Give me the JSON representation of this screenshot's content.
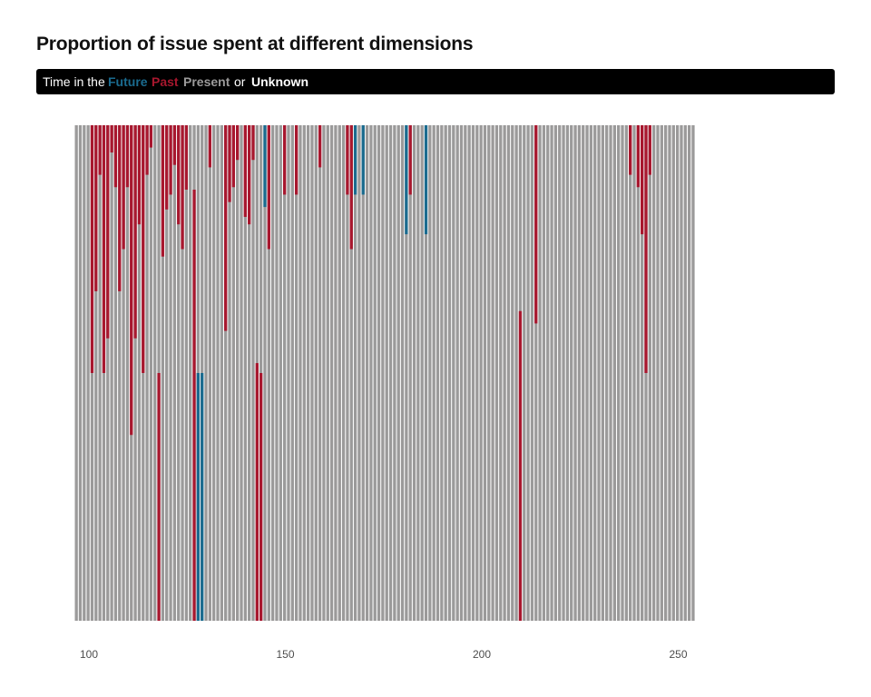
{
  "chart_data": {
    "type": "bar",
    "title": "Proportion of issue spent at different dimensions",
    "legend": {
      "prefix": "Time in the",
      "conjunction": "or",
      "placement": "top",
      "entries": [
        {
          "name": "Future",
          "color": "#1a6b8f"
        },
        {
          "name": "Past",
          "color": "#a8172e"
        },
        {
          "name": "Present",
          "color": "#9b9a9a"
        },
        {
          "name": "Unknown",
          "color": "#ffffff"
        }
      ]
    },
    "xlim": [
      96,
      280
    ],
    "ylim": [
      0,
      1
    ],
    "x_ticks": [
      100,
      150,
      200,
      250
    ],
    "grid": false,
    "bars": [
      {
        "x": 100,
        "segments": []
      },
      {
        "x": 101,
        "segments": []
      },
      {
        "x": 102,
        "segments": []
      },
      {
        "x": 103,
        "segments": []
      },
      {
        "x": 104,
        "segments": [
          {
            "name": "Past",
            "value": 0.5
          }
        ]
      },
      {
        "x": 105,
        "segments": [
          {
            "name": "Past",
            "value": 0.335
          }
        ]
      },
      {
        "x": 106,
        "segments": [
          {
            "name": "Past",
            "value": 0.1
          }
        ]
      },
      {
        "x": 107,
        "segments": [
          {
            "name": "Past",
            "value": 0.5
          }
        ]
      },
      {
        "x": 108,
        "segments": [
          {
            "name": "Past",
            "value": 0.43
          }
        ]
      },
      {
        "x": 109,
        "segments": [
          {
            "name": "Past",
            "value": 0.055
          }
        ]
      },
      {
        "x": 110,
        "segments": [
          {
            "name": "Past",
            "value": 0.125
          }
        ]
      },
      {
        "x": 111,
        "segments": [
          {
            "name": "Past",
            "value": 0.335
          }
        ]
      },
      {
        "x": 112,
        "segments": [
          {
            "name": "Past",
            "value": 0.25
          }
        ]
      },
      {
        "x": 113,
        "segments": [
          {
            "name": "Past",
            "value": 0.125
          }
        ]
      },
      {
        "x": 114,
        "segments": [
          {
            "name": "Past",
            "value": 0.625
          }
        ]
      },
      {
        "x": 115,
        "segments": [
          {
            "name": "Past",
            "value": 0.43
          }
        ]
      },
      {
        "x": 116,
        "segments": [
          {
            "name": "Past",
            "value": 0.2
          }
        ]
      },
      {
        "x": 117,
        "segments": [
          {
            "name": "Past",
            "value": 0.5
          }
        ]
      },
      {
        "x": 118,
        "segments": [
          {
            "name": "Past",
            "value": 0.1
          }
        ]
      },
      {
        "x": 119,
        "segments": [
          {
            "name": "Past",
            "value": 0.045
          }
        ]
      },
      {
        "x": 120,
        "segments": []
      },
      {
        "x": 121,
        "segments": [
          {
            "name": "Past",
            "value": 0.5,
            "offset": 0.5
          }
        ]
      },
      {
        "x": 122,
        "segments": [
          {
            "name": "Past",
            "value": 0.265
          }
        ]
      },
      {
        "x": 123,
        "segments": [
          {
            "name": "Past",
            "value": 0.17
          }
        ]
      },
      {
        "x": 124,
        "segments": [
          {
            "name": "Past",
            "value": 0.14
          }
        ]
      },
      {
        "x": 125,
        "segments": [
          {
            "name": "Past",
            "value": 0.08
          }
        ]
      },
      {
        "x": 126,
        "segments": [
          {
            "name": "Past",
            "value": 0.2
          }
        ]
      },
      {
        "x": 127,
        "segments": [
          {
            "name": "Past",
            "value": 0.25
          }
        ]
      },
      {
        "x": 128,
        "segments": [
          {
            "name": "Past",
            "value": 0.13
          }
        ]
      },
      {
        "x": 129,
        "segments": []
      },
      {
        "x": 130,
        "segments": [
          {
            "name": "Past",
            "value": 0.87,
            "offset": 0.13
          }
        ]
      },
      {
        "x": 131,
        "segments": [
          {
            "name": "Past",
            "value": 0.5,
            "offset": 0.5
          },
          {
            "name": "Future",
            "value": 0.5,
            "offset": 0.5
          }
        ]
      },
      {
        "x": 132,
        "segments": [
          {
            "name": "Future",
            "value": 0.5,
            "offset": 0.5
          }
        ]
      },
      {
        "x": 133,
        "segments": []
      },
      {
        "x": 134,
        "segments": [
          {
            "name": "Past",
            "value": 0.085
          }
        ]
      },
      {
        "x": 135,
        "segments": []
      },
      {
        "x": 136,
        "segments": []
      },
      {
        "x": 137,
        "segments": []
      },
      {
        "x": 138,
        "segments": [
          {
            "name": "Past",
            "value": 0.415
          }
        ]
      },
      {
        "x": 139,
        "segments": [
          {
            "name": "Past",
            "value": 0.155
          }
        ]
      },
      {
        "x": 140,
        "segments": [
          {
            "name": "Past",
            "value": 0.125
          }
        ]
      },
      {
        "x": 141,
        "segments": [
          {
            "name": "Past",
            "value": 0.07
          }
        ]
      },
      {
        "x": 142,
        "segments": []
      },
      {
        "x": 143,
        "segments": [
          {
            "name": "Past",
            "value": 0.185
          }
        ]
      },
      {
        "x": 144,
        "segments": [
          {
            "name": "Past",
            "value": 0.2
          }
        ]
      },
      {
        "x": 145,
        "segments": [
          {
            "name": "Past",
            "value": 0.07
          }
        ]
      },
      {
        "x": 146,
        "segments": [
          {
            "name": "Past",
            "value": 0.52,
            "offset": 0.48
          }
        ]
      },
      {
        "x": 147,
        "segments": [
          {
            "name": "Past",
            "value": 0.5,
            "offset": 0.5
          }
        ]
      },
      {
        "x": 148,
        "segments": [
          {
            "name": "Future",
            "value": 0.165
          }
        ]
      },
      {
        "x": 149,
        "segments": [
          {
            "name": "Past",
            "value": 0.25
          }
        ]
      },
      {
        "x": 150,
        "segments": []
      },
      {
        "x": 151,
        "segments": []
      },
      {
        "x": 152,
        "segments": []
      },
      {
        "x": 153,
        "segments": [
          {
            "name": "Past",
            "value": 0.14
          }
        ]
      },
      {
        "x": 154,
        "segments": []
      },
      {
        "x": 155,
        "segments": []
      },
      {
        "x": 156,
        "segments": [
          {
            "name": "Past",
            "value": 0.14
          }
        ]
      },
      {
        "x": 157,
        "segments": []
      },
      {
        "x": 158,
        "segments": []
      },
      {
        "x": 159,
        "segments": []
      },
      {
        "x": 160,
        "segments": []
      },
      {
        "x": 161,
        "segments": []
      },
      {
        "x": 162,
        "segments": [
          {
            "name": "Past",
            "value": 0.085
          }
        ]
      },
      {
        "x": 163,
        "segments": []
      },
      {
        "x": 164,
        "segments": []
      },
      {
        "x": 165,
        "segments": []
      },
      {
        "x": 166,
        "segments": []
      },
      {
        "x": 167,
        "segments": []
      },
      {
        "x": 168,
        "segments": []
      },
      {
        "x": 169,
        "segments": [
          {
            "name": "Past",
            "value": 0.14
          }
        ]
      },
      {
        "x": 170,
        "segments": [
          {
            "name": "Past",
            "value": 0.25
          }
        ]
      },
      {
        "x": 171,
        "segments": [
          {
            "name": "Future",
            "value": 0.14
          }
        ]
      },
      {
        "x": 172,
        "segments": []
      },
      {
        "x": 173,
        "segments": [
          {
            "name": "Future",
            "value": 0.14
          }
        ]
      },
      {
        "x": 174,
        "segments": []
      },
      {
        "x": 175,
        "segments": []
      },
      {
        "x": 176,
        "segments": []
      },
      {
        "x": 177,
        "segments": []
      },
      {
        "x": 178,
        "segments": []
      },
      {
        "x": 179,
        "segments": []
      },
      {
        "x": 180,
        "segments": []
      },
      {
        "x": 181,
        "segments": []
      },
      {
        "x": 182,
        "segments": []
      },
      {
        "x": 183,
        "segments": []
      },
      {
        "x": 184,
        "segments": [
          {
            "name": "Future",
            "value": 0.22
          }
        ]
      },
      {
        "x": 185,
        "segments": [
          {
            "name": "Past",
            "value": 0.14
          }
        ]
      },
      {
        "x": 186,
        "segments": []
      },
      {
        "x": 187,
        "segments": []
      },
      {
        "x": 188,
        "segments": []
      },
      {
        "x": 189,
        "segments": [
          {
            "name": "Future",
            "value": 0.22
          }
        ]
      },
      {
        "x": 190,
        "segments": []
      },
      {
        "x": 191,
        "segments": []
      },
      {
        "x": 192,
        "segments": []
      },
      {
        "x": 193,
        "segments": []
      },
      {
        "x": 194,
        "segments": []
      },
      {
        "x": 195,
        "segments": []
      },
      {
        "x": 196,
        "segments": []
      },
      {
        "x": 197,
        "segments": []
      },
      {
        "x": 198,
        "segments": []
      },
      {
        "x": 199,
        "segments": []
      },
      {
        "x": 200,
        "segments": []
      },
      {
        "x": 201,
        "segments": []
      },
      {
        "x": 202,
        "segments": []
      },
      {
        "x": 203,
        "segments": []
      },
      {
        "x": 204,
        "segments": []
      },
      {
        "x": 205,
        "segments": []
      },
      {
        "x": 206,
        "segments": []
      },
      {
        "x": 207,
        "segments": []
      },
      {
        "x": 208,
        "segments": []
      },
      {
        "x": 209,
        "segments": []
      },
      {
        "x": 210,
        "segments": []
      },
      {
        "x": 211,
        "segments": []
      },
      {
        "x": 212,
        "segments": []
      },
      {
        "x": 213,
        "segments": [
          {
            "name": "Past",
            "value": 0.625,
            "offset": 0.375
          }
        ]
      },
      {
        "x": 214,
        "segments": []
      },
      {
        "x": 215,
        "segments": []
      },
      {
        "x": 216,
        "segments": []
      },
      {
        "x": 217,
        "segments": [
          {
            "name": "Past",
            "value": 0.4
          }
        ]
      },
      {
        "x": 218,
        "segments": []
      },
      {
        "x": 219,
        "segments": []
      },
      {
        "x": 220,
        "segments": []
      },
      {
        "x": 221,
        "segments": []
      },
      {
        "x": 222,
        "segments": []
      },
      {
        "x": 223,
        "segments": []
      },
      {
        "x": 224,
        "segments": []
      },
      {
        "x": 225,
        "segments": []
      },
      {
        "x": 226,
        "segments": []
      },
      {
        "x": 227,
        "segments": []
      },
      {
        "x": 228,
        "segments": []
      },
      {
        "x": 229,
        "segments": []
      },
      {
        "x": 230,
        "segments": []
      },
      {
        "x": 231,
        "segments": []
      },
      {
        "x": 232,
        "segments": []
      },
      {
        "x": 233,
        "segments": []
      },
      {
        "x": 234,
        "segments": []
      },
      {
        "x": 235,
        "segments": []
      },
      {
        "x": 236,
        "segments": []
      },
      {
        "x": 237,
        "segments": []
      },
      {
        "x": 238,
        "segments": []
      },
      {
        "x": 239,
        "segments": []
      },
      {
        "x": 240,
        "segments": []
      },
      {
        "x": 241,
        "segments": [
          {
            "name": "Past",
            "value": 0.1
          }
        ]
      },
      {
        "x": 242,
        "segments": []
      },
      {
        "x": 243,
        "segments": [
          {
            "name": "Past",
            "value": 0.125
          }
        ]
      },
      {
        "x": 244,
        "segments": [
          {
            "name": "Past",
            "value": 0.22
          }
        ]
      },
      {
        "x": 245,
        "segments": [
          {
            "name": "Past",
            "value": 0.5
          }
        ]
      },
      {
        "x": 246,
        "segments": [
          {
            "name": "Past",
            "value": 0.1
          }
        ]
      },
      {
        "x": 247,
        "segments": []
      },
      {
        "x": 248,
        "segments": []
      },
      {
        "x": 249,
        "segments": []
      },
      {
        "x": 250,
        "segments": []
      },
      {
        "x": 251,
        "segments": []
      },
      {
        "x": 252,
        "segments": []
      },
      {
        "x": 253,
        "segments": []
      },
      {
        "x": 254,
        "segments": []
      },
      {
        "x": 255,
        "segments": []
      },
      {
        "x": 256,
        "segments": []
      },
      {
        "x": 257,
        "segments": []
      }
    ]
  }
}
